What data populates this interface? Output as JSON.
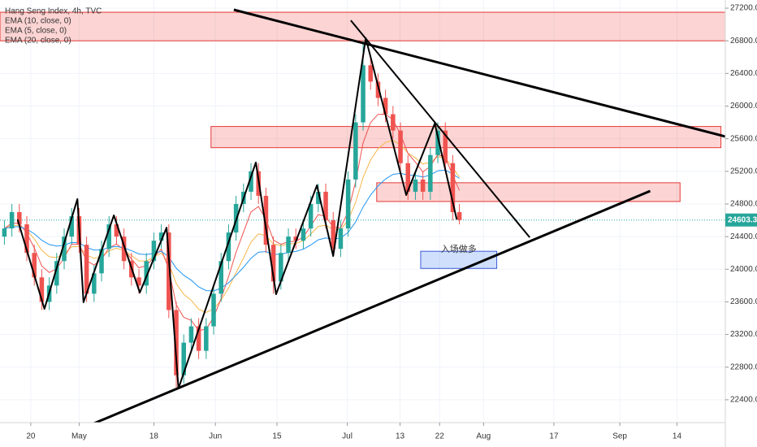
{
  "chart_data": {
    "type": "candlestick",
    "title": "Hang Seng Index, 4h, TVC",
    "indicators": [
      {
        "label": "EMA (10, close, 0)",
        "period": 10,
        "color": "#f5b74a"
      },
      {
        "label": "EMA (5, close, 0)",
        "period": 5,
        "color": "#ef5350"
      },
      {
        "label": "EMA (20, close, 0)",
        "period": 20,
        "color": "#2196f3"
      }
    ],
    "up_color": "#26a69a",
    "down_color": "#ef5350",
    "xlim": [
      -7,
      158
    ],
    "xticks": [
      {
        "value": 0,
        "label": "20"
      },
      {
        "value": 11,
        "label": "May"
      },
      {
        "value": 28,
        "label": "18"
      },
      {
        "value": 42,
        "label": "Jun"
      },
      {
        "value": 56,
        "label": "15"
      },
      {
        "value": 72,
        "label": "Jul"
      },
      {
        "value": 84,
        "label": "13"
      },
      {
        "value": 93,
        "label": "22"
      },
      {
        "value": 103,
        "label": "Aug"
      },
      {
        "value": 119,
        "label": "17"
      },
      {
        "value": 134,
        "label": "Sep"
      },
      {
        "value": 147,
        "label": "14"
      }
    ],
    "ylim": [
      22120,
      27300
    ],
    "yticks": [
      {
        "value": 22400,
        "label": "22400.0"
      },
      {
        "value": 22800,
        "label": "22800.0"
      },
      {
        "value": 23200,
        "label": "23200.0"
      },
      {
        "value": 23600,
        "label": "23600.0"
      },
      {
        "value": 24000,
        "label": "24000.0"
      },
      {
        "value": 24400,
        "label": "24400.0"
      },
      {
        "value": 24800,
        "label": "24800.0"
      },
      {
        "value": 25200,
        "label": "25200.0"
      },
      {
        "value": 25600,
        "label": "25600.0"
      },
      {
        "value": 26000,
        "label": "26000.0"
      },
      {
        "value": 26400,
        "label": "26400.0"
      },
      {
        "value": 26800,
        "label": "26800.0"
      },
      {
        "value": 27200,
        "label": "27200.0"
      }
    ],
    "grid": true,
    "last_price": {
      "value": 24603.3,
      "label": "24603.3",
      "color": "#26a69a"
    },
    "x": [
      -6,
      -4.3,
      -2.6,
      -0.9,
      0.8,
      2.5,
      4.2,
      5.9,
      7.6,
      9.3,
      11,
      12.7,
      14.4,
      16.1,
      17.8,
      19.5,
      21.2,
      22.9,
      24.6,
      26.3,
      28,
      29.7,
      31.4,
      33.1,
      34.8,
      36.5,
      38.2,
      39.9,
      41.6,
      43.3,
      45,
      46.7,
      48.4,
      50.1,
      51.8,
      53.5,
      55.2,
      56.9,
      58.6,
      60.3,
      62,
      63.7,
      65.4,
      67.1,
      68.8,
      70.5,
      72.2,
      73.9,
      75.6,
      77.3,
      79,
      80.7,
      82.4,
      84.1,
      85.8,
      87.5,
      89.2,
      90.9,
      92.6,
      94.3,
      96,
      97.5
    ],
    "open": [
      24400,
      24500,
      24700,
      24550,
      24200,
      23900,
      23600,
      23800,
      24100,
      24400,
      24650,
      24300,
      23700,
      23950,
      24250,
      24550,
      24400,
      24100,
      23900,
      23800,
      24100,
      24350,
      24450,
      23500,
      22700,
      23100,
      23300,
      23000,
      23300,
      23700,
      24100,
      24450,
      24800,
      24950,
      25200,
      24900,
      24300,
      23850,
      24200,
      24400,
      24350,
      24500,
      24800,
      24950,
      24600,
      24250,
      24500,
      25100,
      25800,
      26500,
      26300,
      26100,
      25900,
      25700,
      25300,
      24950,
      25100,
      24950,
      25400,
      25700,
      25300,
      24700
    ],
    "high": [
      24600,
      24800,
      24800,
      24650,
      24300,
      24000,
      23900,
      24200,
      24500,
      24750,
      24750,
      24400,
      24050,
      24350,
      24650,
      24650,
      24500,
      24200,
      24000,
      24200,
      24450,
      24550,
      24550,
      23600,
      23200,
      23400,
      23400,
      23400,
      23800,
      24200,
      24550,
      24900,
      25050,
      25300,
      25300,
      25000,
      24400,
      24300,
      24500,
      24500,
      24600,
      24900,
      25050,
      25050,
      24700,
      24600,
      25200,
      25900,
      26800,
      26600,
      26400,
      26200,
      26000,
      25800,
      25400,
      25200,
      25200,
      25500,
      25800,
      25800,
      25400,
      24800
    ],
    "low": [
      24300,
      24400,
      24450,
      24100,
      23800,
      23500,
      23500,
      23700,
      24000,
      24300,
      24200,
      23600,
      23600,
      23850,
      24150,
      24300,
      24000,
      23800,
      23700,
      23700,
      24000,
      24250,
      23400,
      22550,
      22600,
      23000,
      22900,
      22900,
      23200,
      23600,
      24000,
      24350,
      24700,
      24850,
      24800,
      24200,
      23700,
      23750,
      24100,
      24250,
      24250,
      24400,
      24700,
      24500,
      24150,
      24150,
      24400,
      25000,
      25700,
      26200,
      26000,
      25800,
      25600,
      25200,
      24850,
      24850,
      24850,
      24850,
      25300,
      25200,
      24600,
      24550
    ],
    "close": [
      24500,
      24700,
      24550,
      24200,
      23900,
      23600,
      23800,
      24100,
      24400,
      24650,
      24300,
      23700,
      23950,
      24250,
      24550,
      24400,
      24100,
      23900,
      23800,
      24100,
      24350,
      24450,
      23500,
      22700,
      23100,
      23300,
      23000,
      23300,
      23700,
      24100,
      24450,
      24800,
      24950,
      25200,
      24900,
      24300,
      23850,
      24200,
      24400,
      24350,
      24500,
      24800,
      24950,
      24600,
      24250,
      24500,
      25100,
      25800,
      26500,
      26300,
      26100,
      25900,
      25700,
      25300,
      24950,
      25100,
      24950,
      25400,
      25700,
      25300,
      24700,
      24603
    ],
    "zones": [
      {
        "x": [
          -7,
          158
        ],
        "price": [
          26800,
          27150
        ],
        "fill": "rgba(239,83,80,0.25)",
        "stroke": "#e53935"
      },
      {
        "x": [
          41,
          157
        ],
        "price": [
          25490,
          25750
        ],
        "fill": "rgba(239,83,80,0.25)",
        "stroke": "#e53935"
      },
      {
        "x": [
          78.7,
          147.7
        ],
        "price": [
          24830,
          25060
        ],
        "fill": "rgba(239,83,80,0.25)",
        "stroke": "#e53935"
      },
      {
        "x": [
          88.7,
          106
        ],
        "price": [
          24010,
          24220
        ],
        "fill": "rgba(66,133,244,0.25)",
        "stroke": "#3b5bdb",
        "label": "入场做多"
      }
    ],
    "lines": [
      {
        "points": [
          [
            46.2,
            27180
          ],
          [
            158,
            25626
          ]
        ],
        "width": 3
      },
      {
        "points": [
          [
            13.9,
            22100
          ],
          [
            140.9,
            24959
          ]
        ],
        "width": 3
      },
      {
        "points": [
          [
            72.8,
            27050
          ],
          [
            113.5,
            24390
          ]
        ],
        "width": 2
      },
      {
        "points": [
          [
            -3.0,
            24610
          ],
          [
            3.1,
            23514
          ],
          [
            10.6,
            24860
          ],
          [
            12.0,
            23595
          ],
          [
            18.9,
            24660
          ],
          [
            24.8,
            23714
          ],
          [
            30.9,
            24510
          ],
          [
            33.6,
            22539
          ],
          [
            51.2,
            25308
          ],
          [
            55.8,
            23694
          ],
          [
            65.1,
            25029
          ],
          [
            68.8,
            24162
          ],
          [
            76.2,
            26832
          ],
          [
            85.4,
            24909
          ],
          [
            91.9,
            25786
          ],
          [
            96.9,
            24610
          ]
        ],
        "width": 2
      }
    ]
  }
}
